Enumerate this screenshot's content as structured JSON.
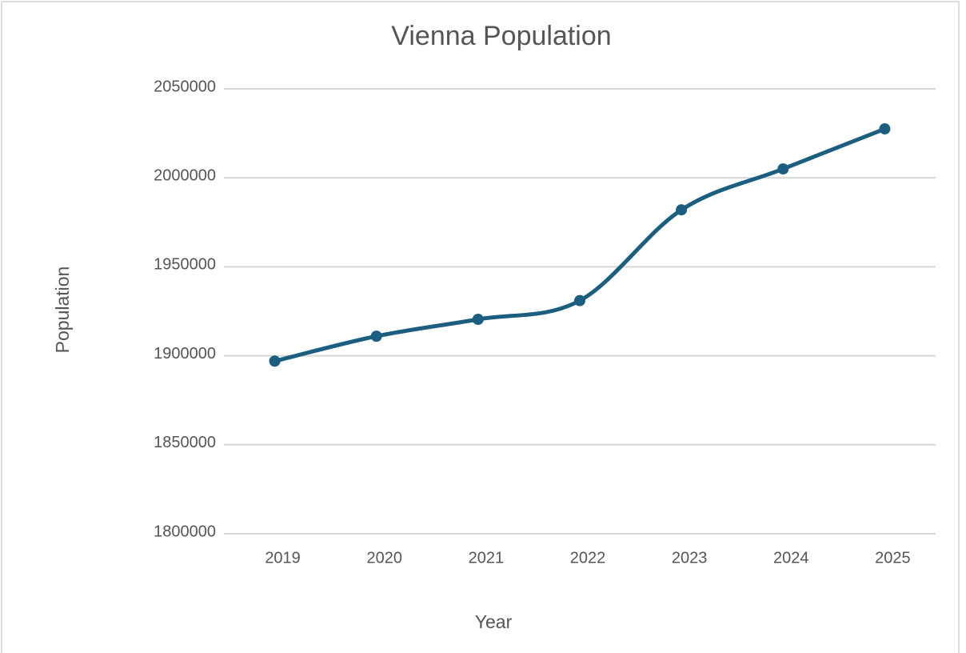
{
  "chart_data": {
    "type": "line",
    "title": "Vienna Population",
    "x_label": "Year",
    "y_label": "Population",
    "categories": [
      "2019",
      "2020",
      "2021",
      "2022",
      "2023",
      "2024",
      "2025"
    ],
    "series": [
      {
        "name": "Population",
        "color": "#1b5e80",
        "values": [
          1897000,
          1911000,
          1920500,
          1931000,
          1982000,
          2005000,
          2027500
        ]
      }
    ],
    "ylim": [
      1800000,
      2050000
    ],
    "yticks": [
      1800000,
      1850000,
      1900000,
      1950000,
      2000000,
      2050000
    ],
    "grid": true
  }
}
